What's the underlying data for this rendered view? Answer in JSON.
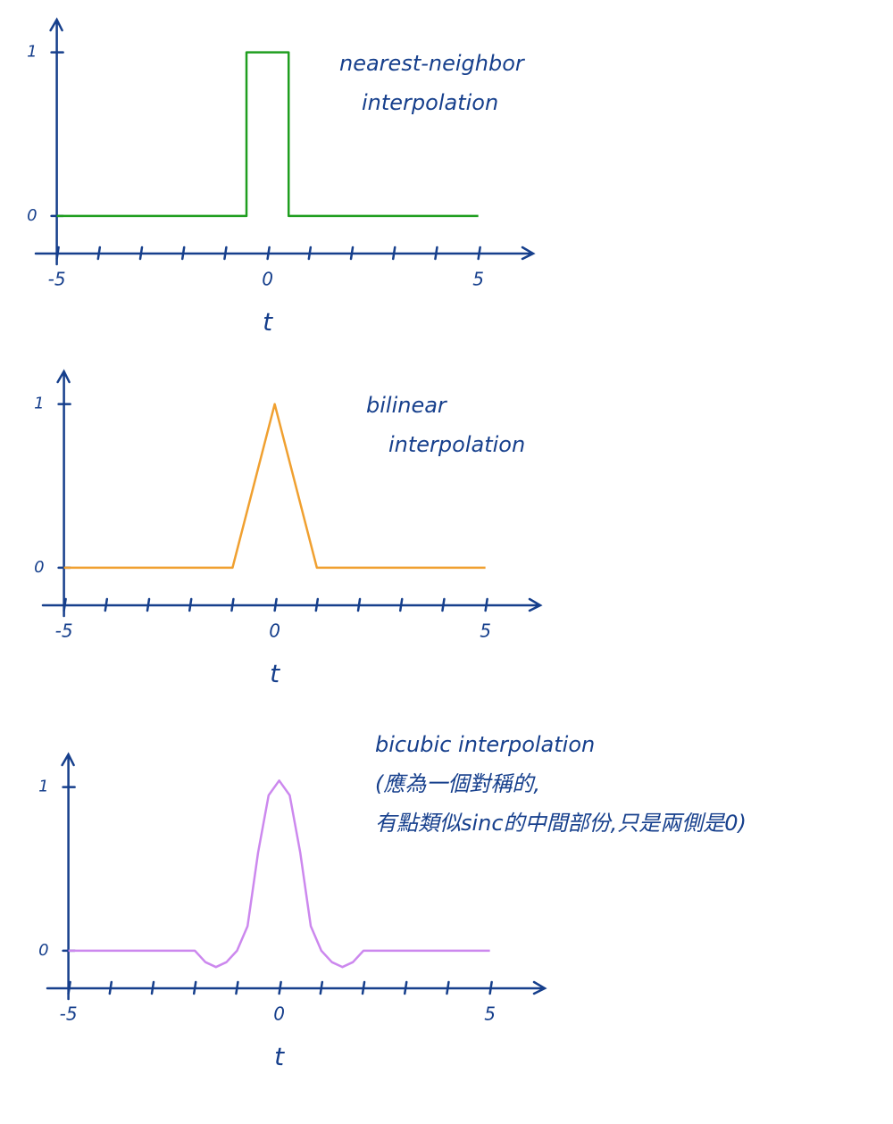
{
  "chart_data": [
    {
      "type": "line",
      "xlabel": "t",
      "annotation": [
        "nearest-neighbor",
        "interpolation"
      ],
      "series": [
        {
          "color": "#1f9e1f",
          "x": [
            -5,
            -0.5,
            -0.5,
            0.5,
            0.5,
            5
          ],
          "values": [
            0,
            0,
            1,
            1,
            0,
            0
          ]
        }
      ],
      "xlim": [
        -5.5,
        6.3
      ],
      "ylim": [
        -0.23,
        1.2
      ],
      "xticks": [
        -5,
        0,
        5
      ],
      "xminorticks": [
        -4,
        -3,
        -2,
        -1,
        1,
        2,
        3,
        4
      ],
      "yticks": [
        0,
        1
      ]
    },
    {
      "type": "line",
      "xlabel": "t",
      "annotation": [
        "bilinear",
        "interpolation"
      ],
      "series": [
        {
          "color": "#f0a030",
          "x": [
            -5,
            -1,
            0,
            1,
            5
          ],
          "values": [
            0,
            0,
            1,
            0,
            0
          ]
        }
      ],
      "xlim": [
        -5.5,
        6.3
      ],
      "ylim": [
        -0.23,
        1.2
      ],
      "xticks": [
        -5,
        0,
        5
      ],
      "xminorticks": [
        -4,
        -3,
        -2,
        -1,
        1,
        2,
        3,
        4
      ],
      "yticks": [
        0,
        1
      ]
    },
    {
      "type": "line",
      "xlabel": "t",
      "annotation": [
        "bicubic interpolation",
        "(應為一個對稱的,",
        "有點類似sinc的中間部份,只是兩側是0)"
      ],
      "series": [
        {
          "color": "#cc88ee",
          "x": [
            -5,
            -2,
            -1.75,
            -1.5,
            -1.25,
            -1,
            -0.75,
            -0.5,
            -0.25,
            0,
            0.25,
            0.5,
            0.75,
            1,
            1.25,
            1.5,
            1.75,
            2,
            5
          ],
          "values": [
            0,
            0,
            -0.07,
            -0.1,
            -0.07,
            0,
            0.15,
            0.6,
            0.95,
            1.04,
            0.95,
            0.6,
            0.15,
            0,
            -0.07,
            -0.1,
            -0.07,
            0,
            0
          ]
        }
      ],
      "xlim": [
        -5.5,
        6.3
      ],
      "ylim": [
        -0.23,
        1.2
      ],
      "xticks": [
        -5,
        0,
        5
      ],
      "xminorticks": [
        -4,
        -3,
        -2,
        -1,
        1,
        2,
        3,
        4
      ],
      "yticks": [
        0,
        1
      ]
    }
  ]
}
